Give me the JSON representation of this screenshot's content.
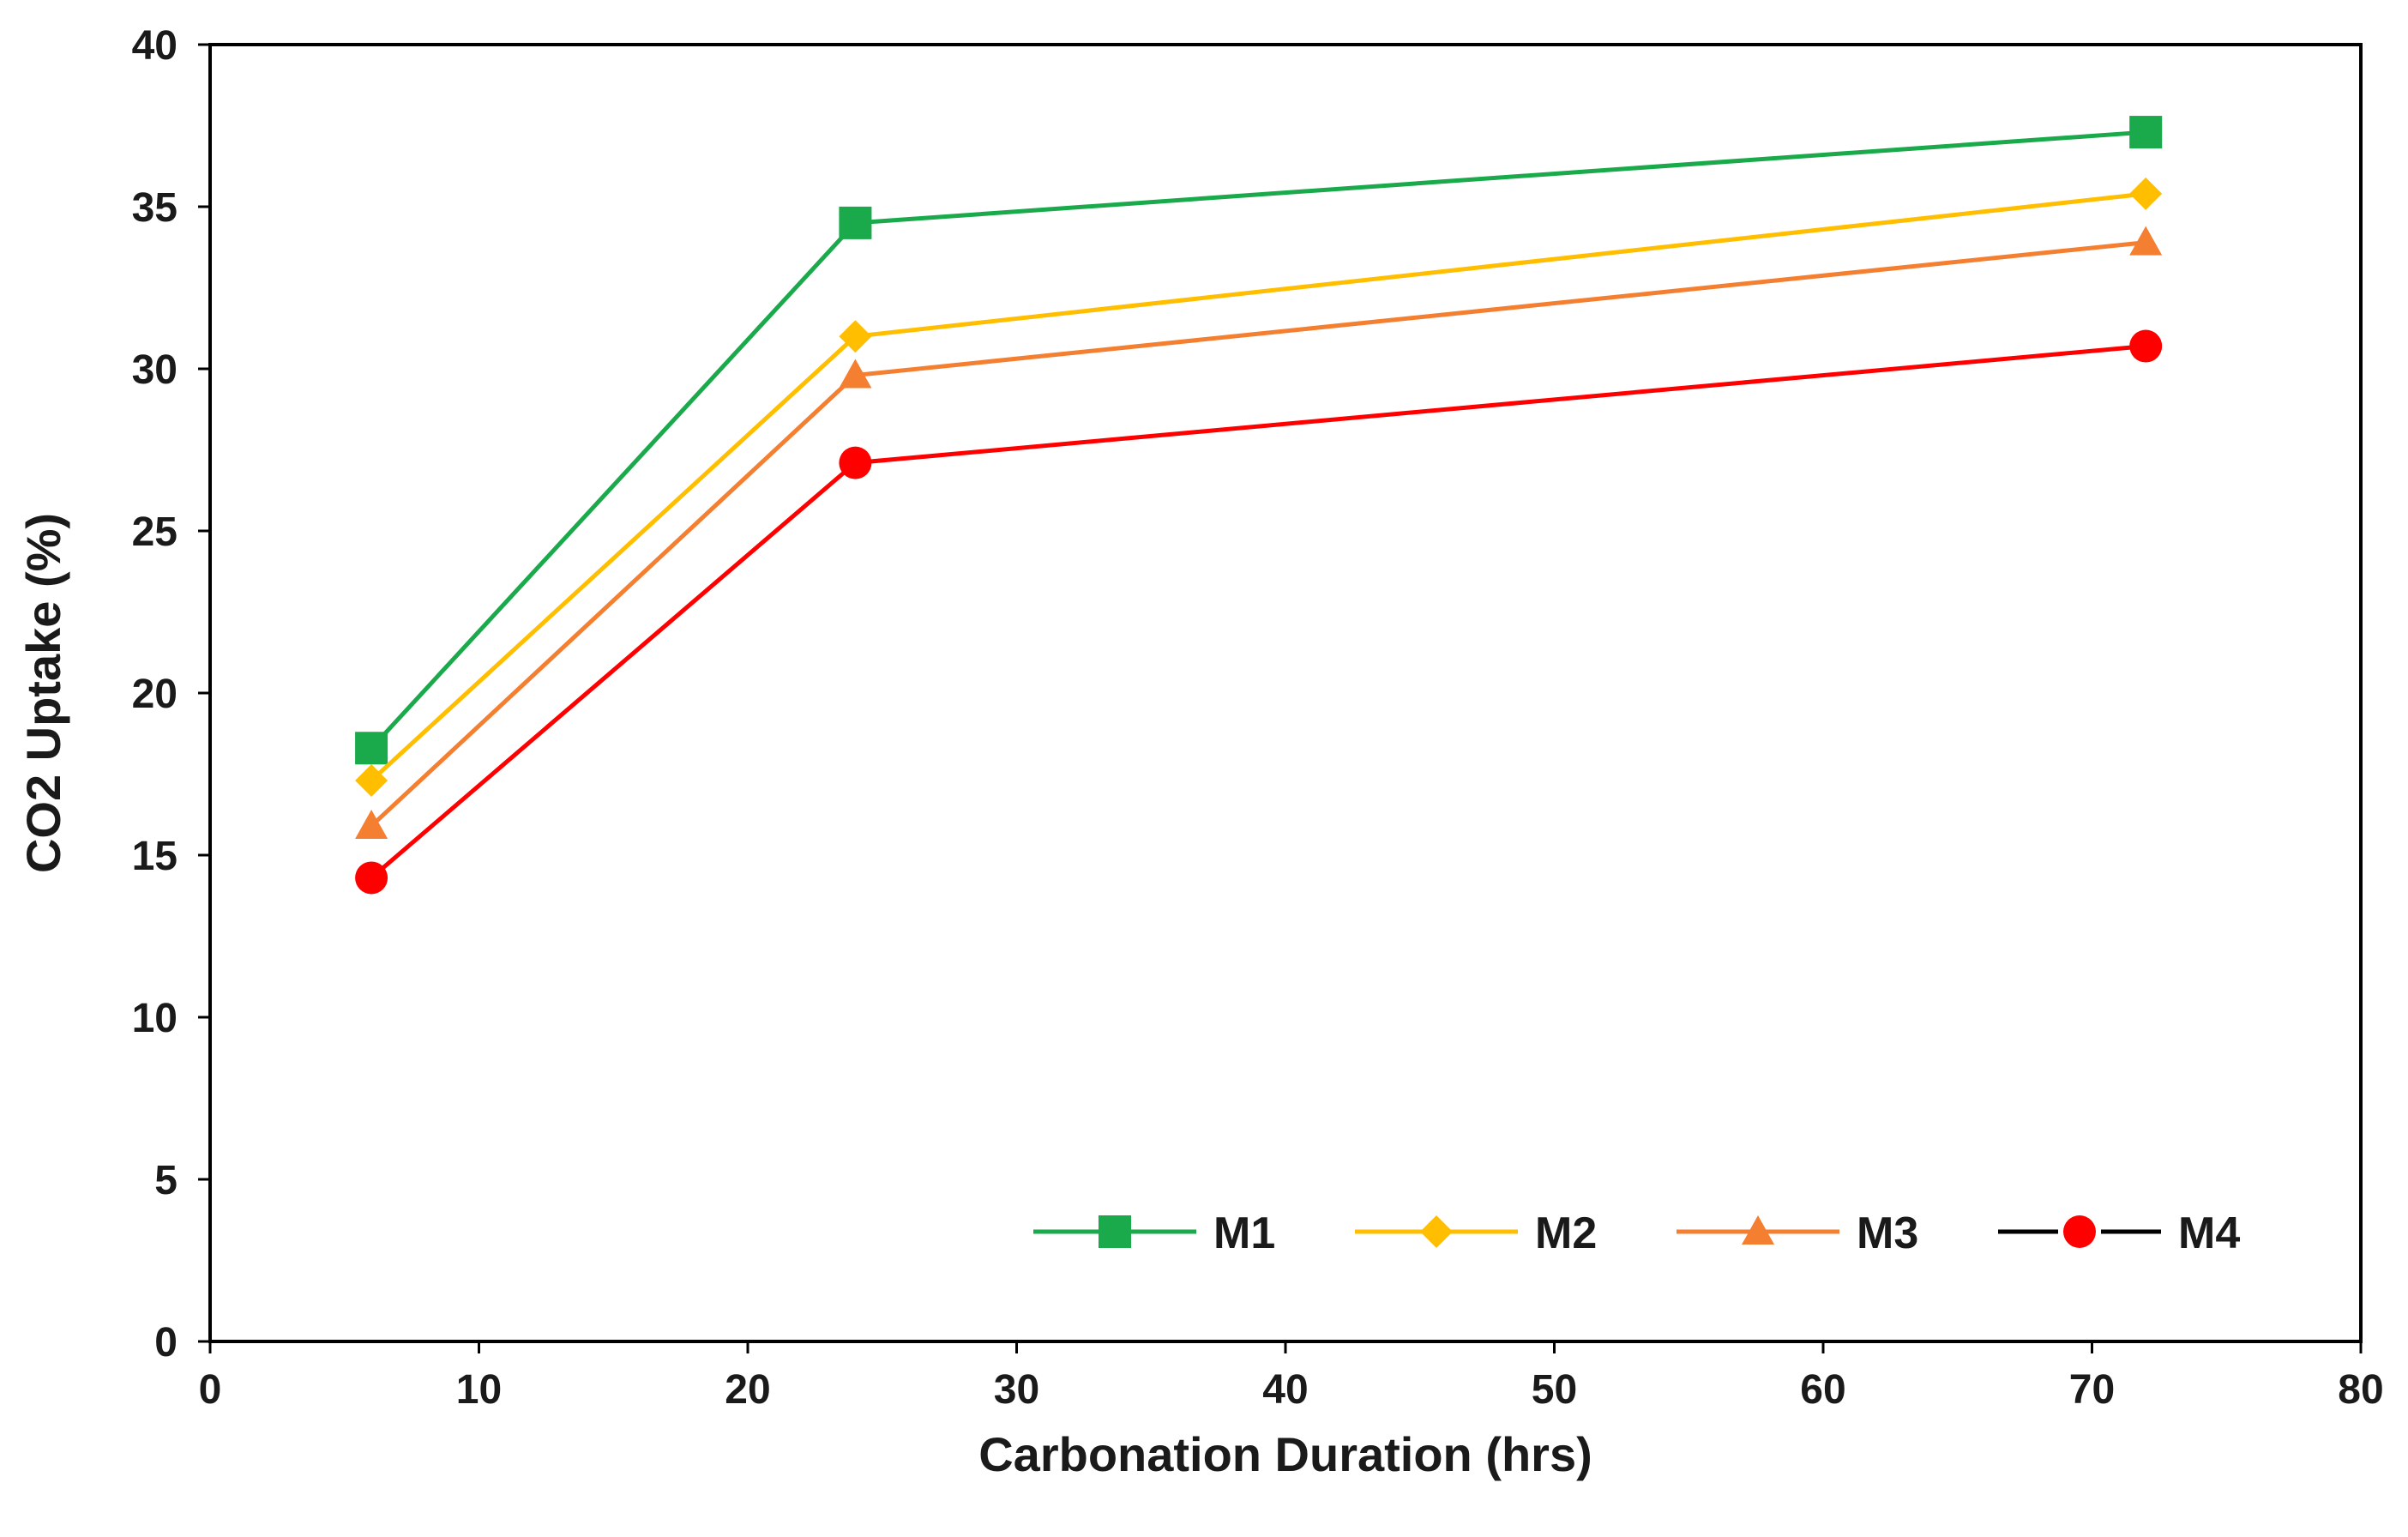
{
  "chart_data": {
    "type": "line",
    "title": "",
    "xlabel": "Carbonation Duration (hrs)",
    "ylabel": "CO2 Uptake (%)",
    "xlim": [
      0,
      80
    ],
    "ylim": [
      0,
      40
    ],
    "xticks": [
      0,
      10,
      20,
      30,
      40,
      50,
      60,
      70,
      80
    ],
    "yticks": [
      0,
      5,
      10,
      15,
      20,
      25,
      30,
      35,
      40
    ],
    "grid": false,
    "legend_position": "bottom-right",
    "x": [
      6,
      24,
      72
    ],
    "series": [
      {
        "name": "M1",
        "values": [
          18.3,
          34.5,
          37.3
        ],
        "color": "#1aaa4b",
        "marker": "square"
      },
      {
        "name": "M2",
        "values": [
          17.3,
          31.0,
          35.4
        ],
        "color": "#ffbf00",
        "marker": "diamond"
      },
      {
        "name": "M3",
        "values": [
          15.9,
          29.8,
          33.9
        ],
        "color": "#f47f30",
        "marker": "triangle"
      },
      {
        "name": "M4",
        "values": [
          14.3,
          27.1,
          30.7
        ],
        "color": "#ff0000",
        "marker": "circle",
        "legend_line_color": "#000000"
      }
    ]
  }
}
